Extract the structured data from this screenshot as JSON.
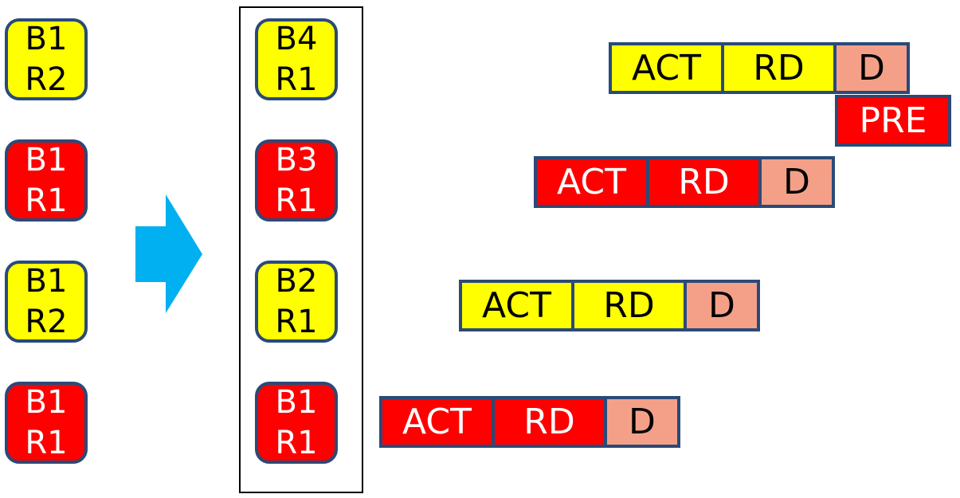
{
  "incoming_requests": [
    {
      "bank": "B1",
      "row": "R2",
      "color": "yellow"
    },
    {
      "bank": "B1",
      "row": "R1",
      "color": "red"
    },
    {
      "bank": "B1",
      "row": "R2",
      "color": "yellow"
    },
    {
      "bank": "B1",
      "row": "R1",
      "color": "red"
    }
  ],
  "arrow_icon": "right-arrow-icon",
  "scheduled_queue": [
    {
      "bank": "B4",
      "row": "R1",
      "color": "yellow"
    },
    {
      "bank": "B3",
      "row": "R1",
      "color": "red"
    },
    {
      "bank": "B2",
      "row": "R1",
      "color": "yellow"
    },
    {
      "bank": "B1",
      "row": "R1",
      "color": "red"
    }
  ],
  "timelines": [
    {
      "color": "yellow",
      "act": "ACT",
      "rd": "RD",
      "d": "D"
    },
    {
      "color": "red",
      "act": "ACT",
      "rd": "RD",
      "d": "D"
    },
    {
      "color": "yellow",
      "act": "ACT",
      "rd": "RD",
      "d": "D"
    },
    {
      "color": "red",
      "act": "ACT",
      "rd": "RD",
      "d": "D"
    }
  ],
  "precharge": {
    "label": "PRE"
  },
  "colors": {
    "yellow": "#ffff00",
    "red": "#ff0000",
    "data_salmon": "#f4a088",
    "border_navy": "#2a4a78",
    "arrow_cyan": "#00b0f0"
  }
}
